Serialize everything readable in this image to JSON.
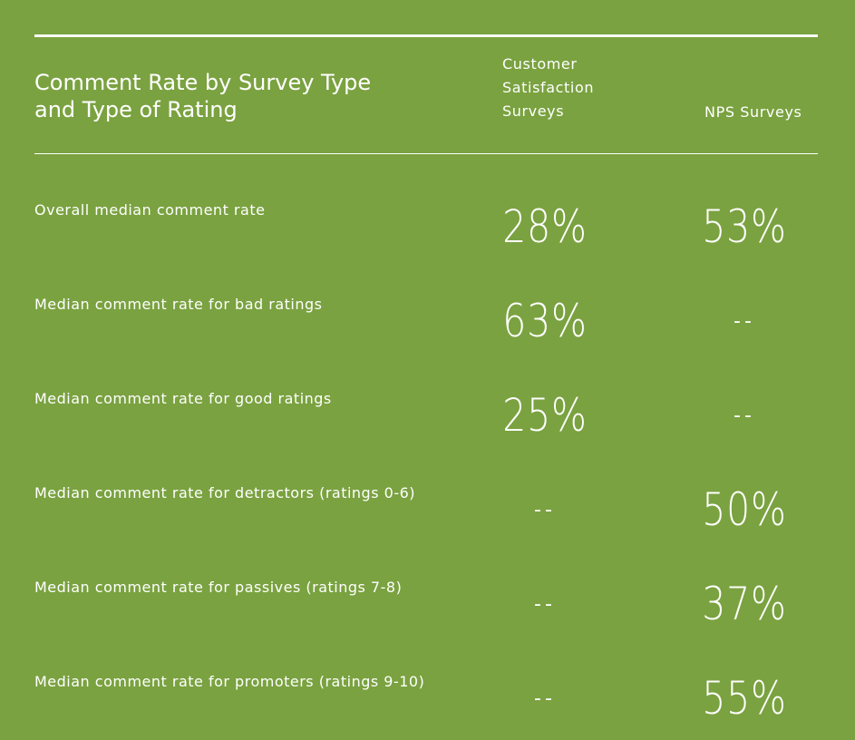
{
  "chart_data": {
    "type": "table",
    "title": "Comment Rate by Survey Type and Type of Rating",
    "columns": [
      "Customer Satisfaction Surveys",
      "NPS Surveys"
    ],
    "rows": [
      {
        "label": "Overall median comment rate",
        "values": [
          "28%",
          "53%"
        ]
      },
      {
        "label": "Median comment rate for bad ratings",
        "values": [
          "63%",
          "--"
        ]
      },
      {
        "label": "Median comment rate for good ratings",
        "values": [
          "25%",
          "--"
        ]
      },
      {
        "label": "Median comment rate for detractors (ratings 0-6)",
        "values": [
          "--",
          "50%"
        ]
      },
      {
        "label": "Median comment rate for passives (ratings 7-8)",
        "values": [
          "--",
          "37%"
        ]
      },
      {
        "label": "Median comment rate for promoters (ratings 9-10)",
        "values": [
          "--",
          "55%"
        ]
      }
    ]
  },
  "header": {
    "title": "Comment Rate by Survey Type\nand Type of Rating",
    "csat_label": "Customer\nSatisfaction\nSurveys",
    "nps_label": "NPS Surveys"
  },
  "colors": {
    "background": "#7aa240",
    "text": "#ffffff"
  }
}
